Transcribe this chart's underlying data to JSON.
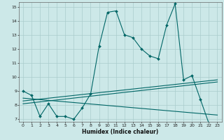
{
  "background_color": "#cce8e8",
  "grid_color": "#aacccc",
  "line_color": "#006666",
  "xlabel": "Humidex (Indice chaleur)",
  "xlim": [
    -0.5,
    23.5
  ],
  "ylim": [
    6.8,
    15.3
  ],
  "yticks": [
    7,
    8,
    9,
    10,
    11,
    12,
    13,
    14,
    15
  ],
  "xticks": [
    0,
    1,
    2,
    3,
    4,
    5,
    6,
    7,
    8,
    9,
    10,
    11,
    12,
    13,
    14,
    15,
    16,
    17,
    18,
    19,
    20,
    21,
    22,
    23
  ],
  "xticklabels": [
    "0",
    "1",
    "2",
    "3",
    "4",
    "5",
    "6",
    "7",
    "8",
    "9",
    "10",
    "11",
    "12",
    "13",
    "14",
    "15",
    "16",
    "17",
    "18",
    "19",
    "20",
    "21",
    "22",
    "23"
  ],
  "series1_x": [
    0,
    1,
    2,
    3,
    4,
    5,
    6,
    7,
    8,
    9,
    10,
    11,
    12,
    13,
    14,
    15,
    16,
    17,
    18,
    19,
    20,
    21,
    22,
    23
  ],
  "series1_y": [
    9.0,
    8.7,
    7.2,
    8.1,
    7.2,
    7.2,
    7.0,
    7.8,
    8.8,
    12.2,
    14.6,
    14.7,
    13.0,
    12.8,
    12.0,
    11.5,
    11.3,
    13.7,
    15.2,
    9.8,
    10.1,
    8.4,
    6.7,
    6.6
  ],
  "series2_x": [
    0,
    23
  ],
  "series2_y": [
    8.3,
    9.8
  ],
  "series3_x": [
    0,
    23
  ],
  "series3_y": [
    8.1,
    9.65
  ],
  "series4_x": [
    0,
    23
  ],
  "series4_y": [
    8.5,
    7.3
  ],
  "markersize": 2.0,
  "linewidth": 0.8,
  "tick_fontsize": 4.5
}
